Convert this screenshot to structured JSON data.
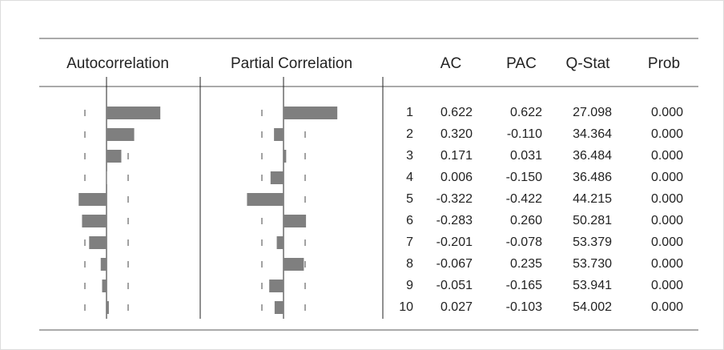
{
  "table": {
    "headers": [
      "Autocorrelation",
      "Partial Correlation",
      "AC",
      "PAC",
      "Q-Stat",
      "Prob"
    ],
    "rows": [
      [
        "1",
        "0.622",
        "0.622",
        "27.098",
        "0.000"
      ],
      [
        "2",
        "0.320",
        "-0.110",
        "34.364",
        "0.000"
      ],
      [
        "3",
        "0.171",
        "0.031",
        "36.484",
        "0.000"
      ],
      [
        "4",
        "0.006",
        "-0.150",
        "36.486",
        "0.000"
      ],
      [
        "5",
        "-0.322",
        "-0.422",
        "44.215",
        "0.000"
      ],
      [
        "6",
        "-0.283",
        "0.260",
        "50.281",
        "0.000"
      ],
      [
        "7",
        "-0.201",
        "-0.078",
        "53.379",
        "0.000"
      ],
      [
        "8",
        "-0.067",
        "0.235",
        "53.730",
        "0.000"
      ],
      [
        "9",
        "-0.051",
        "-0.165",
        "53.941",
        "0.000"
      ],
      [
        "10",
        "0.027",
        "-0.103",
        "54.002",
        "0.000"
      ]
    ]
  }
}
